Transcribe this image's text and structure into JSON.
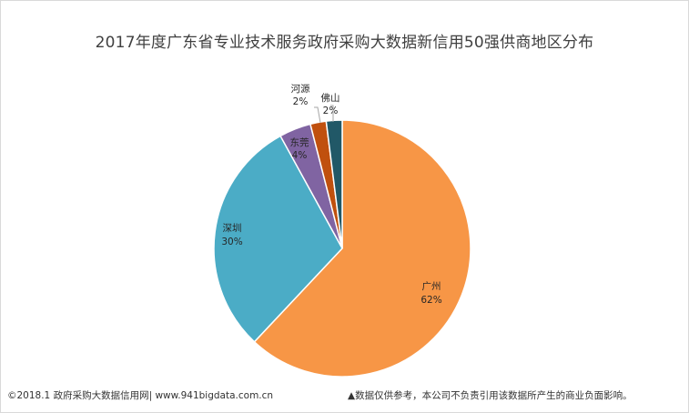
{
  "chart_data": {
    "type": "pie",
    "title": "2017年度广东省专业技术服务政府采购大数据新信用50强供商地区分布",
    "slices": [
      {
        "label": "广州",
        "value": 62,
        "display": "62%",
        "color": "#f79646"
      },
      {
        "label": "深圳",
        "value": 30,
        "display": "30%",
        "color": "#4bacc6"
      },
      {
        "label": "东莞",
        "value": 4,
        "display": "4%",
        "color": "#8064a2"
      },
      {
        "label": "河源",
        "value": 2,
        "display": "2%",
        "color": "#c0500e"
      },
      {
        "label": "佛山",
        "value": 2,
        "display": "2%",
        "color": "#215867"
      }
    ]
  },
  "footer": {
    "left": "©2018.1 政府采购大数据信用网| www.941bigdata.com.cn",
    "right": "▲数据仅供参考，本公司不负责引用该数据所产生的商业负面影响。"
  }
}
